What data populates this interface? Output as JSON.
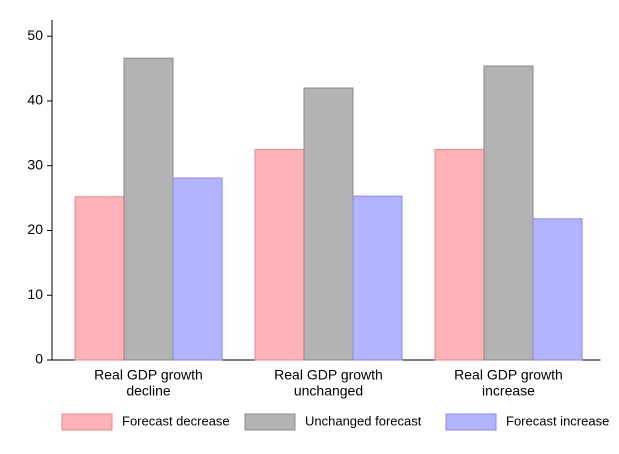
{
  "chart_data": {
    "type": "bar",
    "categories": [
      [
        "Real GDP growth",
        "decline"
      ],
      [
        "Real GDP growth",
        "unchanged"
      ],
      [
        "Real GDP growth",
        "increase"
      ]
    ],
    "series": [
      {
        "name": "Forecast decrease",
        "color": "#ffb3b8",
        "values": [
          25.2,
          32.5,
          32.5
        ]
      },
      {
        "name": "Unchanged forecast",
        "color": "#b3b3b3",
        "values": [
          46.6,
          42.0,
          45.4
        ]
      },
      {
        "name": "Forecast increase",
        "color": "#b3b3ff",
        "values": [
          28.1,
          25.3,
          21.8
        ]
      }
    ],
    "ylim": [
      0,
      52.5
    ],
    "yticks": [
      0,
      10,
      20,
      30,
      40,
      50
    ],
    "grid": false,
    "legend": "bottom"
  }
}
